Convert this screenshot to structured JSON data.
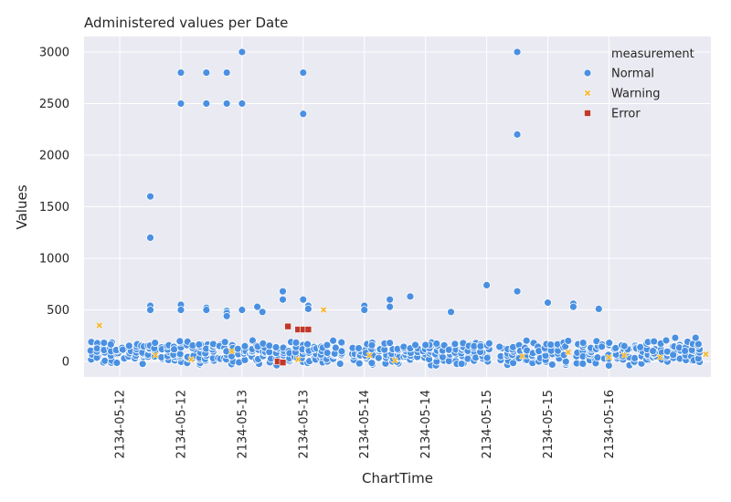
{
  "chart_data": {
    "type": "scatter",
    "title": "Administered values per Date",
    "xlabel": "ChartTime",
    "ylabel": "Values",
    "ylim": [
      -150,
      3150
    ],
    "y_ticks": [
      0,
      500,
      1000,
      1500,
      2000,
      2500,
      3000
    ],
    "x_domain": [
      "2134-05-11 17:00",
      "2134-05-16 20:00"
    ],
    "x_ticks": [
      {
        "at": "2134-05-12 00:00",
        "label": "2134-05-12"
      },
      {
        "at": "2134-05-12 12:00",
        "label": "2134-05-12"
      },
      {
        "at": "2134-05-13 00:00",
        "label": "2134-05-13"
      },
      {
        "at": "2134-05-13 12:00",
        "label": "2134-05-13"
      },
      {
        "at": "2134-05-14 00:00",
        "label": "2134-05-14"
      },
      {
        "at": "2134-05-14 12:00",
        "label": "2134-05-14"
      },
      {
        "at": "2134-05-15 00:00",
        "label": "2134-05-15"
      },
      {
        "at": "2134-05-15 12:00",
        "label": "2134-05-15"
      },
      {
        "at": "2134-05-16 00:00",
        "label": "2134-05-16"
      }
    ],
    "grid": true,
    "legend": {
      "title": "measurement",
      "placement": "top-right"
    },
    "series": [
      {
        "name": "Normal",
        "marker": "circle",
        "color": "#4a90e2",
        "points": [
          {
            "x": "2134-05-12 06:00",
            "y": 1600
          },
          {
            "x": "2134-05-12 06:00",
            "y": 1200
          },
          {
            "x": "2134-05-12 06:00",
            "y": 540
          },
          {
            "x": "2134-05-12 06:00",
            "y": 500
          },
          {
            "x": "2134-05-12 12:00",
            "y": 2800
          },
          {
            "x": "2134-05-12 12:00",
            "y": 2500
          },
          {
            "x": "2134-05-12 12:00",
            "y": 550
          },
          {
            "x": "2134-05-12 12:00",
            "y": 500
          },
          {
            "x": "2134-05-12 17:00",
            "y": 2800
          },
          {
            "x": "2134-05-12 17:00",
            "y": 2500
          },
          {
            "x": "2134-05-12 17:00",
            "y": 520
          },
          {
            "x": "2134-05-12 17:00",
            "y": 500
          },
          {
            "x": "2134-05-12 21:00",
            "y": 2800
          },
          {
            "x": "2134-05-12 21:00",
            "y": 2500
          },
          {
            "x": "2134-05-12 21:00",
            "y": 490
          },
          {
            "x": "2134-05-12 21:00",
            "y": 470
          },
          {
            "x": "2134-05-12 21:00",
            "y": 440
          },
          {
            "x": "2134-05-13 00:00",
            "y": 3000
          },
          {
            "x": "2134-05-13 00:00",
            "y": 2500
          },
          {
            "x": "2134-05-13 00:00",
            "y": 500
          },
          {
            "x": "2134-05-13 03:00",
            "y": 530
          },
          {
            "x": "2134-05-13 04:00",
            "y": 480
          },
          {
            "x": "2134-05-13 08:00",
            "y": 680
          },
          {
            "x": "2134-05-13 08:00",
            "y": 600
          },
          {
            "x": "2134-05-13 12:00",
            "y": 2800
          },
          {
            "x": "2134-05-13 12:00",
            "y": 2400
          },
          {
            "x": "2134-05-13 12:00",
            "y": 600
          },
          {
            "x": "2134-05-13 13:00",
            "y": 540
          },
          {
            "x": "2134-05-13 13:00",
            "y": 510
          },
          {
            "x": "2134-05-14 00:00",
            "y": 540
          },
          {
            "x": "2134-05-14 00:00",
            "y": 500
          },
          {
            "x": "2134-05-14 05:00",
            "y": 600
          },
          {
            "x": "2134-05-14 05:00",
            "y": 530
          },
          {
            "x": "2134-05-14 05:00",
            "y": 180
          },
          {
            "x": "2134-05-14 09:00",
            "y": 630
          },
          {
            "x": "2134-05-14 10:00",
            "y": 160
          },
          {
            "x": "2134-05-14 12:00",
            "y": 160
          },
          {
            "x": "2134-05-14 17:00",
            "y": 480
          },
          {
            "x": "2134-05-15 00:00",
            "y": 740
          },
          {
            "x": "2134-05-15 06:00",
            "y": 3000
          },
          {
            "x": "2134-05-15 06:00",
            "y": 2200
          },
          {
            "x": "2134-05-15 06:00",
            "y": 680
          },
          {
            "x": "2134-05-15 12:00",
            "y": 570
          },
          {
            "x": "2134-05-15 16:00",
            "y": 200
          },
          {
            "x": "2134-05-15 17:00",
            "y": 560
          },
          {
            "x": "2134-05-15 17:00",
            "y": 530
          },
          {
            "x": "2134-05-15 22:00",
            "y": 510
          },
          {
            "x": "2134-05-16 03:00",
            "y": 150
          },
          {
            "x": "2134-05-16 13:00",
            "y": 230
          },
          {
            "x": "2134-05-16 17:00",
            "y": 230
          }
        ],
        "dense_band": {
          "x_from": "2134-05-11 17:00",
          "x_to": "2134-05-16 20:00",
          "y_values": [
            0,
            20,
            40,
            60,
            80,
            100,
            120,
            140,
            160
          ]
        }
      },
      {
        "name": "Warning",
        "marker": "x",
        "color": "#f5b82e",
        "points": [
          {
            "x": "2134-05-11 20:00",
            "y": 350
          },
          {
            "x": "2134-05-12 07:00",
            "y": 60
          },
          {
            "x": "2134-05-12 14:00",
            "y": 20
          },
          {
            "x": "2134-05-12 22:00",
            "y": 100
          },
          {
            "x": "2134-05-13 11:00",
            "y": 20
          },
          {
            "x": "2134-05-13 16:00",
            "y": 500
          },
          {
            "x": "2134-05-14 01:00",
            "y": 60
          },
          {
            "x": "2134-05-14 06:00",
            "y": 10
          },
          {
            "x": "2134-05-15 07:00",
            "y": 50
          },
          {
            "x": "2134-05-15 16:00",
            "y": 90
          },
          {
            "x": "2134-05-16 00:00",
            "y": 40
          },
          {
            "x": "2134-05-16 03:00",
            "y": 60
          },
          {
            "x": "2134-05-16 10:00",
            "y": 40
          },
          {
            "x": "2134-05-16 19:00",
            "y": 70
          }
        ]
      },
      {
        "name": "Error",
        "marker": "square",
        "color": "#c0392b",
        "points": [
          {
            "x": "2134-05-13 07:00",
            "y": 0
          },
          {
            "x": "2134-05-13 08:00",
            "y": -10
          },
          {
            "x": "2134-05-13 09:00",
            "y": 340
          },
          {
            "x": "2134-05-13 11:00",
            "y": 310
          },
          {
            "x": "2134-05-13 12:00",
            "y": 310
          },
          {
            "x": "2134-05-13 13:00",
            "y": 310
          }
        ]
      }
    ]
  }
}
